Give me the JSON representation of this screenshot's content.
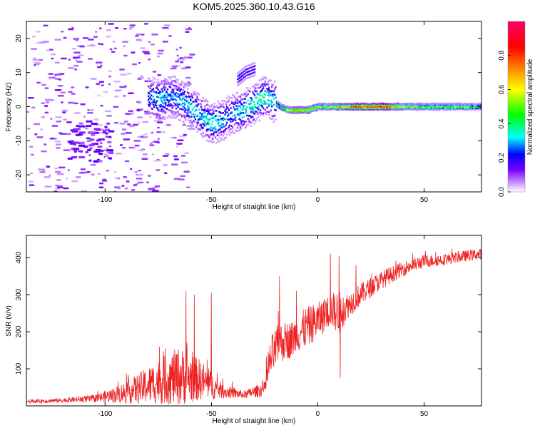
{
  "title": "KOM5.2025.360.10.43.G16",
  "chart_data": [
    {
      "type": "heatmap",
      "name": "spectrogram",
      "xlabel": "Height of straight line (km)",
      "ylabel": "Frequency (Hz)",
      "xlim": [
        -137,
        77
      ],
      "ylim": [
        -25,
        25
      ],
      "xticks": [
        -100,
        -50,
        0,
        50
      ],
      "xtick_labels": [
        "-100",
        "-50",
        "0",
        "50"
      ],
      "yticks": [
        -20,
        -10,
        0,
        10,
        20
      ],
      "ytick_labels": [
        "-20",
        "-10",
        "0",
        "10",
        "20"
      ],
      "dominant_ridge": {
        "x": [
          -80,
          -75,
          -68,
          -60,
          -55,
          -50,
          -45,
          -40,
          -35,
          -30,
          -25,
          -22,
          -18,
          -14,
          -10,
          -5,
          0,
          5,
          10,
          20,
          30,
          40,
          50,
          60,
          70,
          77
        ],
        "y": [
          3,
          2,
          3,
          0,
          -3,
          -5,
          -4,
          -2,
          -1,
          1,
          3,
          2,
          0,
          -1,
          -1,
          -1,
          0,
          0,
          0,
          0,
          0,
          0,
          0,
          0,
          0,
          0
        ],
        "amplitude": [
          0.25,
          0.35,
          0.3,
          0.35,
          0.3,
          0.4,
          0.3,
          0.3,
          0.35,
          0.4,
          0.4,
          0.35,
          0.45,
          0.6,
          0.75,
          0.7,
          0.6,
          0.55,
          0.7,
          0.85,
          0.95,
          0.6,
          0.55,
          0.5,
          0.55,
          0.4
        ]
      },
      "upper_band": {
        "x": [
          -38,
          -34,
          -30
        ],
        "y": [
          8,
          10,
          11
        ]
      },
      "colorbar": {
        "label": "Normalized spectral amplitude",
        "range": [
          0,
          1
        ],
        "ticks": [
          "0.0",
          "0.2",
          "0.4",
          "0.6",
          "0.8"
        ],
        "colormap": [
          "#ffffff",
          "#cc99ff",
          "#7700ff",
          "#0000ff",
          "#00ffff",
          "#00ff00",
          "#ffff00",
          "#ff8800",
          "#ff0000",
          "#ff0066"
        ]
      }
    },
    {
      "type": "line",
      "name": "snr",
      "xlabel": "Height of straight line (km)",
      "ylabel": "SNR (v/v)",
      "xlim": [
        -137,
        77
      ],
      "ylim": [
        0,
        460
      ],
      "xticks": [
        -100,
        -50,
        0,
        50
      ],
      "xtick_labels": [
        "-100",
        "-50",
        "0",
        "50"
      ],
      "yticks": [
        100,
        200,
        300,
        400
      ],
      "ytick_labels": [
        "100",
        "200",
        "300",
        "400"
      ],
      "color": "#ee2222",
      "envelope": {
        "x": [
          -137,
          -120,
          -105,
          -95,
          -85,
          -75,
          -65,
          -55,
          -45,
          -35,
          -25,
          -22,
          -18,
          -12,
          -6,
          0,
          6,
          10,
          14,
          20,
          30,
          40,
          50,
          60,
          70,
          77
        ],
        "y": [
          12,
          15,
          20,
          30,
          45,
          65,
          80,
          70,
          40,
          30,
          45,
          130,
          170,
          180,
          210,
          230,
          260,
          250,
          270,
          300,
          340,
          370,
          390,
          395,
          405,
          410
        ],
        "noise": [
          5,
          6,
          10,
          22,
          40,
          60,
          80,
          55,
          20,
          10,
          20,
          60,
          55,
          50,
          55,
          50,
          45,
          60,
          35,
          30,
          25,
          20,
          18,
          15,
          15,
          15
        ]
      },
      "spikes": [
        {
          "x": -62,
          "y": 310
        },
        {
          "x": -58,
          "y": 300
        },
        {
          "x": -50,
          "y": 305
        },
        {
          "x": -18,
          "y": 350
        },
        {
          "x": -10,
          "y": 310
        },
        {
          "x": 6,
          "y": 410
        },
        {
          "x": 10,
          "y": 405
        },
        {
          "x": 10.5,
          "y": 75
        },
        {
          "x": 18,
          "y": 380
        }
      ]
    }
  ]
}
